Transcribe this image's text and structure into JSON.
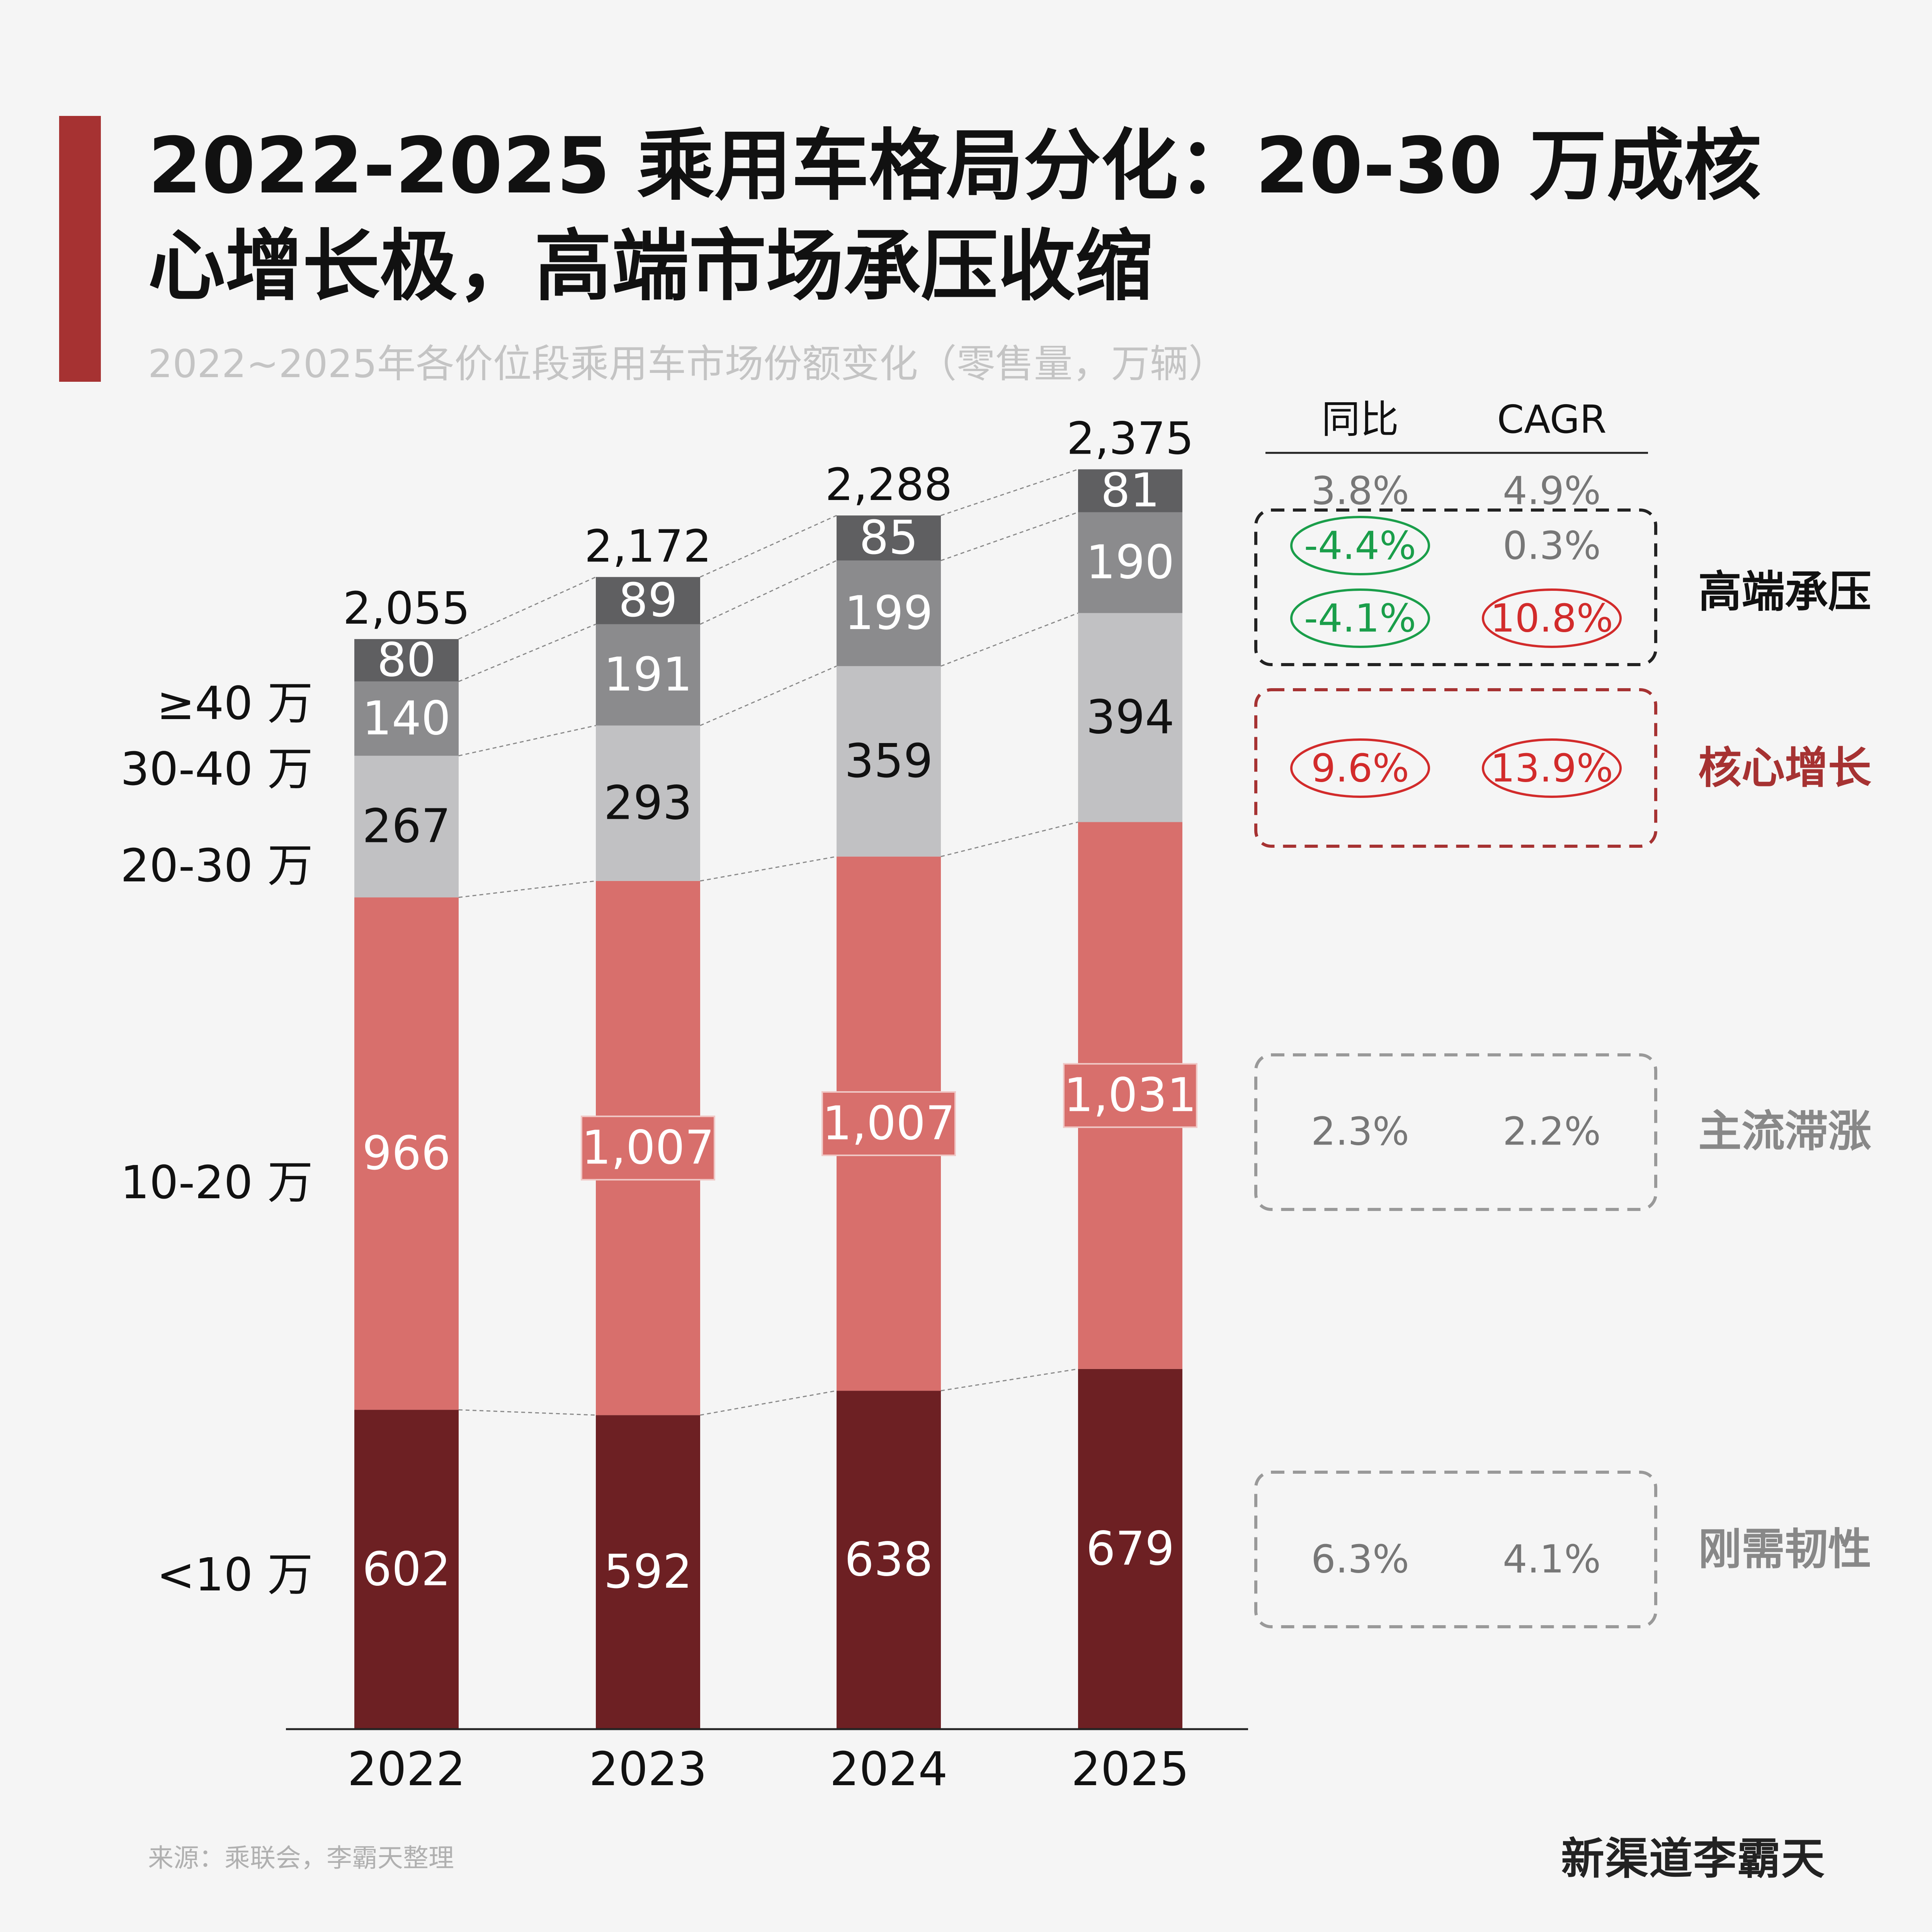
{
  "title": "2022-2025 乘用车格局分化：20-30 万成核心增长极，高端市场承压收缩",
  "subtitle": "2022~2025年各价位段乘用车市场份额变化（零售量，万辆）",
  "source": "来源：乘联会，李霸天整理",
  "brand": "新渠道李霸天",
  "colors": {
    "accent": "#a63232",
    "under10": "#6d2023",
    "s10_20": "#d86f6c",
    "s20_30": "#c1c1c3",
    "s30_40": "#8b8b8d",
    "over40": "#5f5f61",
    "green": "#1a9e4a",
    "red": "#d22b2b"
  },
  "chart_data": {
    "type": "bar",
    "stacked": true,
    "categories": [
      "2022",
      "2023",
      "2024",
      "2025"
    ],
    "series": [
      {
        "name": "<10 万",
        "values": [
          602,
          592,
          638,
          679
        ],
        "labels": [
          "602",
          "592",
          "638",
          "679"
        ]
      },
      {
        "name": "10-20 万",
        "values": [
          966,
          1007,
          1007,
          1031
        ],
        "labels": [
          "966",
          "1,007",
          "1,007",
          "1,031"
        ]
      },
      {
        "name": "20-30 万",
        "values": [
          267,
          293,
          359,
          394
        ],
        "labels": [
          "267",
          "293",
          "359",
          "394"
        ]
      },
      {
        "name": "30-40 万",
        "values": [
          140,
          191,
          199,
          190
        ],
        "labels": [
          "140",
          "191",
          "199",
          "190"
        ]
      },
      {
        "name": "≥40 万",
        "values": [
          80,
          89,
          85,
          81
        ],
        "labels": [
          "80",
          "89",
          "85",
          "81"
        ]
      }
    ],
    "totals": [
      "2,055",
      "2,172",
      "2,288",
      "2,375"
    ],
    "rates": {
      "headers": [
        "同比",
        "CAGR"
      ],
      "total": {
        "yoy": "3.8%",
        "cagr": "4.9%"
      },
      "rows": [
        {
          "segment": "≥40 万",
          "yoy": "-4.4%",
          "cagr": "0.3%"
        },
        {
          "segment": "30-40 万",
          "yoy": "-4.1%",
          "cagr": "10.8%"
        },
        {
          "segment": "20-30 万",
          "yoy": "9.6%",
          "cagr": "13.9%"
        },
        {
          "segment": "10-20 万",
          "yoy": "2.3%",
          "cagr": "2.2%"
        },
        {
          "segment": "<10 万",
          "yoy": "6.3%",
          "cagr": "4.1%"
        }
      ]
    },
    "groups": [
      "高端承压",
      "核心增长",
      "主流滞涨",
      "刚需韧性"
    ]
  }
}
